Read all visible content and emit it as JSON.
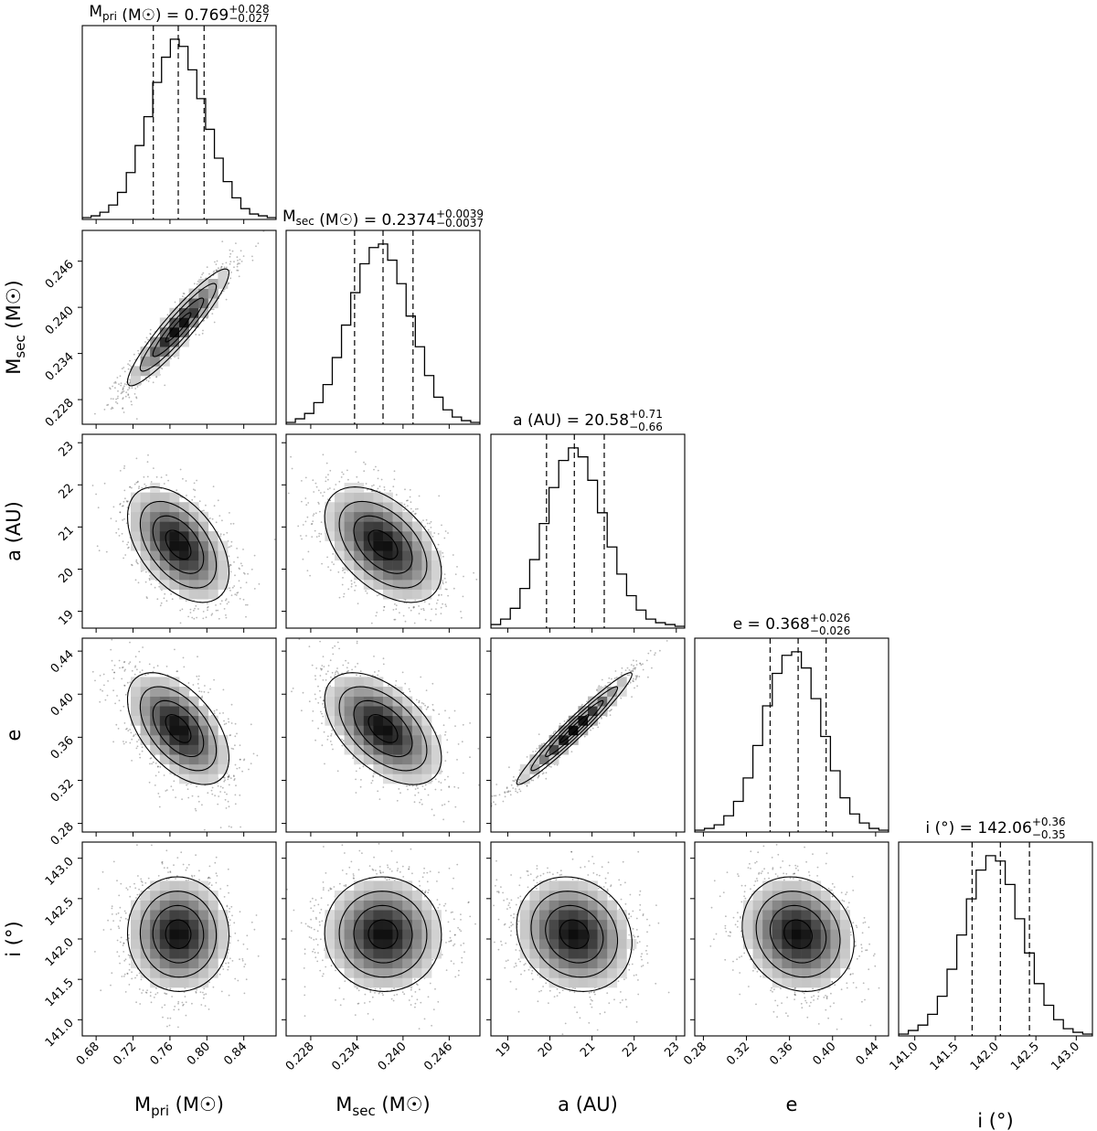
{
  "chart_data": {
    "type": "corner",
    "description_free": true,
    "parameters": [
      {
        "key": "mpri",
        "label": "M_pri (M☉)",
        "label_main": "M",
        "label_sub": "pri",
        "label_unit": " (M☉)",
        "range": [
          0.665,
          0.875
        ],
        "ticks": [
          0.68,
          0.72,
          0.76,
          0.8,
          0.84
        ],
        "tick_labels": [
          "0.68",
          "0.72",
          "0.76",
          "0.80",
          "0.84"
        ],
        "median": 0.769,
        "plus": 0.028,
        "minus": 0.027,
        "title_value": "0.769",
        "title_plus": "+0.028",
        "title_minus": "−0.027",
        "hist": [
          1,
          2,
          4,
          8,
          15,
          26,
          41,
          57,
          76,
          90,
          100,
          96,
          83,
          67,
          50,
          34,
          21,
          12,
          6,
          3,
          2,
          1
        ]
      },
      {
        "key": "msec",
        "label": "M_sec (M☉)",
        "label_main": "M",
        "label_sub": "sec",
        "label_unit": " (M☉)",
        "range": [
          0.2248,
          0.25
        ],
        "ticks": [
          0.228,
          0.234,
          0.24,
          0.246
        ],
        "tick_labels": [
          "0.228",
          "0.234",
          "0.240",
          "0.246"
        ],
        "median": 0.2374,
        "plus": 0.0039,
        "minus": 0.0037,
        "title_value": "0.2374",
        "title_plus": "+0.0039",
        "title_minus": "−0.0037",
        "hist": [
          1,
          3,
          6,
          12,
          22,
          37,
          55,
          73,
          89,
          98,
          100,
          91,
          78,
          60,
          43,
          27,
          15,
          8,
          4,
          2,
          1
        ]
      },
      {
        "key": "a",
        "label": "a (AU)",
        "label_main": "a (AU)",
        "label_sub": "",
        "label_unit": "",
        "range": [
          18.6,
          23.2
        ],
        "ticks": [
          19,
          20,
          21,
          22,
          23
        ],
        "tick_labels": [
          "19",
          "20",
          "21",
          "22",
          "23"
        ],
        "median": 20.58,
        "plus": 0.71,
        "minus": 0.66,
        "title_value": "20.58",
        "title_plus": "+0.71",
        "title_minus": "−0.66",
        "hist": [
          2,
          5,
          11,
          22,
          38,
          58,
          78,
          93,
          100,
          95,
          82,
          64,
          45,
          30,
          18,
          10,
          5,
          3,
          2,
          1
        ]
      },
      {
        "key": "e",
        "label": "e",
        "label_main": "e",
        "label_sub": "",
        "label_unit": "",
        "range": [
          0.272,
          0.452
        ],
        "ticks": [
          0.28,
          0.32,
          0.36,
          0.4,
          0.44
        ],
        "tick_labels": [
          "0.28",
          "0.32",
          "0.36",
          "0.40",
          "0.44"
        ],
        "median": 0.368,
        "plus": 0.026,
        "minus": 0.026,
        "title_value": "0.368",
        "title_plus": "+0.026",
        "title_minus": "−0.026",
        "hist": [
          1,
          2,
          4,
          9,
          17,
          30,
          48,
          70,
          88,
          98,
          100,
          91,
          74,
          53,
          34,
          19,
          10,
          5,
          2,
          1
        ]
      },
      {
        "key": "inc",
        "label": "i (°)",
        "label_main": "i (°)",
        "label_sub": "",
        "label_unit": "",
        "range": [
          140.8,
          143.2
        ],
        "ticks": [
          141.0,
          141.5,
          142.0,
          142.5,
          143.0
        ],
        "tick_labels": [
          "141.0",
          "141.5",
          "142.0",
          "142.5",
          "143.0"
        ],
        "median": 142.06,
        "plus": 0.36,
        "minus": 0.35,
        "title_value": "142.06",
        "title_plus": "+0.36",
        "title_minus": "−0.35",
        "hist": [
          1,
          3,
          6,
          12,
          22,
          37,
          56,
          76,
          92,
          100,
          97,
          84,
          65,
          46,
          29,
          17,
          9,
          4,
          2,
          1
        ]
      }
    ],
    "correlations": {
      "1-0": 0.93,
      "2-0": -0.48,
      "2-1": -0.48,
      "3-0": -0.52,
      "3-1": -0.52,
      "3-2": 0.97,
      "4-0": -0.02,
      "4-1": -0.02,
      "4-2": -0.15,
      "4-3": -0.14
    },
    "contour_levels_sigma": [
      0.5,
      1.0,
      1.5,
      2.0
    ],
    "quantiles": [
      0.16,
      0.5,
      0.84
    ],
    "histogram_style": "step",
    "contour_color": "#000000"
  }
}
